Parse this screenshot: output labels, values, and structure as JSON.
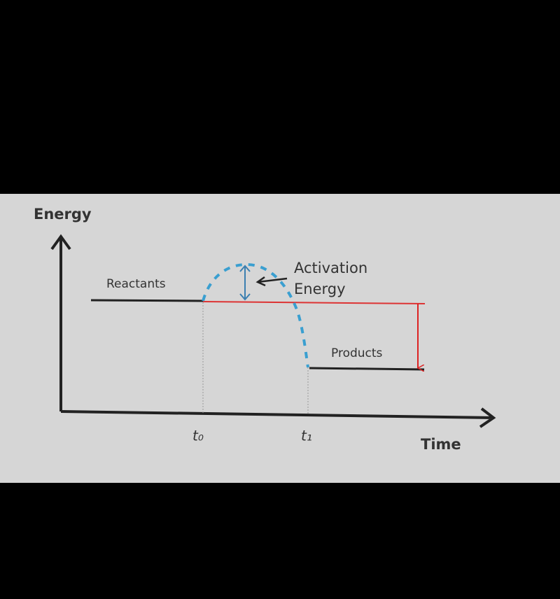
{
  "diagram": {
    "y_axis_label": "Energy",
    "x_axis_label": "Time",
    "reactants_label": "Reactants",
    "products_label": "Products",
    "activation_energy_label": [
      "Activation",
      "Energy"
    ],
    "time_marks": [
      "t₀",
      "t₁"
    ]
  }
}
